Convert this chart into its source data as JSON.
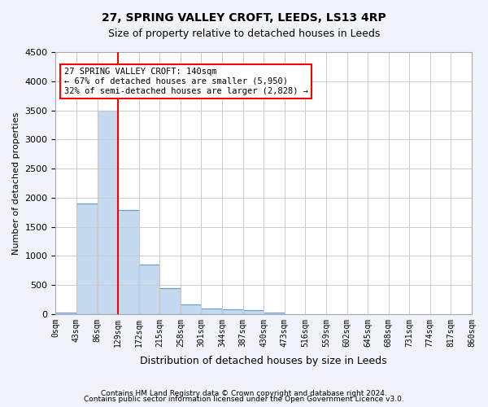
{
  "title": "27, SPRING VALLEY CROFT, LEEDS, LS13 4RP",
  "subtitle": "Size of property relative to detached houses in Leeds",
  "xlabel": "Distribution of detached houses by size in Leeds",
  "ylabel": "Number of detached properties",
  "bin_labels": [
    "0sqm",
    "43sqm",
    "86sqm",
    "129sqm",
    "172sqm",
    "215sqm",
    "258sqm",
    "301sqm",
    "344sqm",
    "387sqm",
    "430sqm",
    "473sqm",
    "516sqm",
    "559sqm",
    "602sqm",
    "645sqm",
    "688sqm",
    "731sqm",
    "774sqm",
    "817sqm",
    "860sqm"
  ],
  "bar_values": [
    30,
    1900,
    3500,
    1780,
    850,
    450,
    165,
    100,
    75,
    60,
    30,
    0,
    0,
    0,
    0,
    0,
    0,
    0,
    0,
    0
  ],
  "bar_color": "#c5d9f1",
  "bar_edge_color": "#6699cc",
  "vline_x": 3,
  "vline_color": "red",
  "ylim": [
    0,
    4500
  ],
  "yticks": [
    0,
    500,
    1000,
    1500,
    2000,
    2500,
    3000,
    3500,
    4000,
    4500
  ],
  "annotation_text": "27 SPRING VALLEY CROFT: 140sqm\n← 67% of detached houses are smaller (5,950)\n32% of semi-detached houses are larger (2,828) →",
  "annotation_box_color": "white",
  "annotation_box_edge": "red",
  "footer_line1": "Contains HM Land Registry data © Crown copyright and database right 2024.",
  "footer_line2": "Contains public sector information licensed under the Open Government Licence v3.0.",
  "bg_color": "#f0f4fa",
  "plot_bg_color": "#ffffff"
}
